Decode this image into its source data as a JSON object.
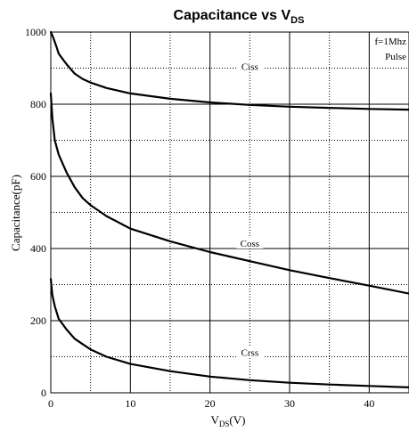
{
  "chart_data": {
    "type": "line",
    "title": "Capacitance vs V",
    "title_subscript": "DS",
    "xlabel": "V",
    "xlabel_subscript": "DS",
    "xlabel_unit": "(V)",
    "ylabel": "Capacitance(pF)",
    "xlim": [
      0,
      45
    ],
    "ylim": [
      0,
      1000
    ],
    "x_ticks": [
      0,
      10,
      20,
      30,
      40
    ],
    "y_ticks": [
      0,
      200,
      400,
      600,
      800,
      1000
    ],
    "x_minor_ticks": [
      5,
      15,
      25,
      35
    ],
    "y_minor_ticks": [
      100,
      300,
      500,
      700,
      900
    ],
    "notes": [
      "f=1Mhz",
      "Pulse"
    ],
    "grid": true,
    "series": [
      {
        "name": "Ciss",
        "label_at": [
          25,
          900
        ],
        "x": [
          0,
          0.3,
          0.7,
          1,
          2,
          3,
          4,
          5,
          7,
          10,
          15,
          20,
          25,
          30,
          35,
          40,
          45
        ],
        "y": [
          1000,
          985,
          960,
          940,
          910,
          885,
          870,
          860,
          845,
          830,
          815,
          805,
          798,
          793,
          790,
          787,
          785
        ]
      },
      {
        "name": "Coss",
        "label_at": [
          25,
          410
        ],
        "x": [
          0,
          0.2,
          0.5,
          1,
          2,
          3,
          4,
          5,
          7,
          10,
          15,
          20,
          25,
          30,
          35,
          40,
          45
        ],
        "y": [
          830,
          760,
          700,
          660,
          610,
          570,
          540,
          520,
          490,
          455,
          420,
          390,
          365,
          340,
          318,
          297,
          275
        ]
      },
      {
        "name": "Crss",
        "label_at": [
          25,
          108
        ],
        "x": [
          0,
          0.2,
          0.5,
          1,
          2,
          3,
          4,
          5,
          7,
          10,
          15,
          20,
          25,
          30,
          35,
          40,
          45
        ],
        "y": [
          315,
          270,
          240,
          205,
          175,
          150,
          135,
          120,
          100,
          80,
          60,
          45,
          35,
          28,
          23,
          19,
          15
        ]
      }
    ]
  }
}
